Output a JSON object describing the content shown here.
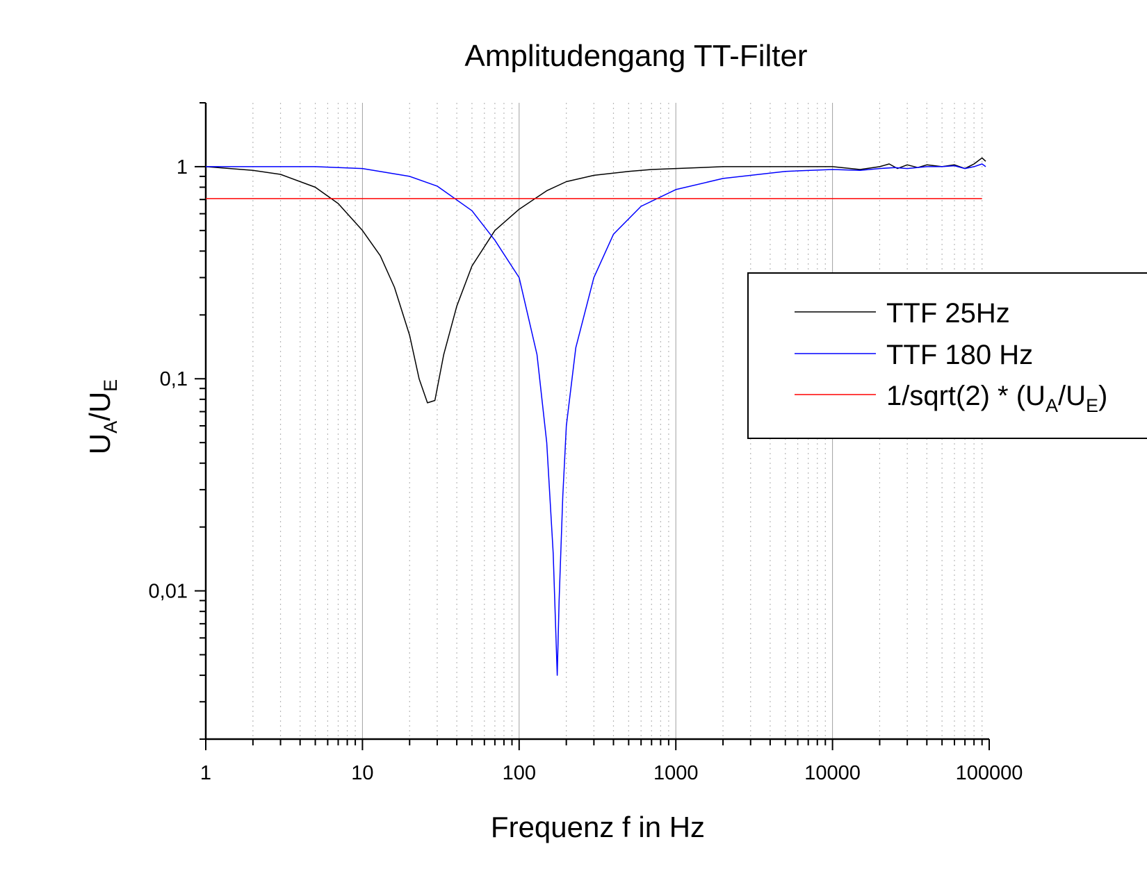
{
  "chart_data": {
    "type": "line",
    "title": "Amplitudengang TT-Filter",
    "xlabel": "Frequenz f in Hz",
    "ylabel": {
      "main": "U",
      "sub_a": "A",
      "slash": "/U",
      "sub_e": "E"
    },
    "x_scale": "log",
    "y_scale": "log",
    "xlim": [
      1,
      100000
    ],
    "ylim": [
      0.002,
      2
    ],
    "x_ticks": [
      {
        "value": 1,
        "label": "1"
      },
      {
        "value": 10,
        "label": "10"
      },
      {
        "value": 100,
        "label": "100"
      },
      {
        "value": 1000,
        "label": "1000"
      },
      {
        "value": 10000,
        "label": "10000"
      },
      {
        "value": 100000,
        "label": "100000"
      }
    ],
    "y_ticks": [
      {
        "value": 1,
        "label": "1"
      },
      {
        "value": 0.1,
        "label": "0,1"
      },
      {
        "value": 0.01,
        "label": "0,01"
      }
    ],
    "grid": "major solid vertical, minor dotted vertical",
    "legend_position": "right",
    "series": [
      {
        "name": "TTF 25Hz",
        "color": "#000000",
        "x": [
          1,
          2,
          3,
          5,
          7,
          10,
          13,
          16,
          20,
          23,
          26,
          29,
          33,
          40,
          50,
          70,
          100,
          150,
          200,
          300,
          500,
          700,
          1000,
          2000,
          5000,
          10000,
          15000,
          20000,
          23000,
          26000,
          30000,
          35000,
          40000,
          50000,
          60000,
          70000,
          80000,
          90000,
          95000
        ],
        "y": [
          1.0,
          0.96,
          0.92,
          0.8,
          0.67,
          0.5,
          0.38,
          0.27,
          0.16,
          0.1,
          0.077,
          0.079,
          0.13,
          0.22,
          0.34,
          0.5,
          0.63,
          0.77,
          0.85,
          0.91,
          0.95,
          0.97,
          0.98,
          1.0,
          1.0,
          1.0,
          0.97,
          1.0,
          1.03,
          0.98,
          1.02,
          0.99,
          1.02,
          1.0,
          1.02,
          0.98,
          1.03,
          1.1,
          1.06
        ]
      },
      {
        "name": "TTF 180 Hz",
        "color": "#0000ff",
        "x": [
          1,
          5,
          10,
          20,
          30,
          50,
          70,
          100,
          130,
          150,
          165,
          175,
          180,
          190,
          200,
          230,
          300,
          400,
          600,
          1000,
          2000,
          5000,
          10000,
          15000,
          20000,
          25000,
          30000,
          40000,
          50000,
          60000,
          70000,
          80000,
          90000,
          95000
        ],
        "y": [
          1.0,
          1.0,
          0.98,
          0.9,
          0.81,
          0.62,
          0.45,
          0.3,
          0.13,
          0.05,
          0.015,
          0.004,
          0.009,
          0.028,
          0.06,
          0.14,
          0.3,
          0.48,
          0.65,
          0.78,
          0.88,
          0.95,
          0.97,
          0.96,
          0.98,
          0.99,
          0.98,
          1.0,
          1.0,
          1.01,
          0.98,
          1.0,
          1.03,
          1.0
        ]
      },
      {
        "name": "1/sqrt(2) * (U_A/U_E)",
        "color": "#ff0000",
        "x": [
          1,
          90000
        ],
        "y": [
          0.707,
          0.707
        ]
      }
    ],
    "legend": [
      {
        "text": "TTF 25Hz",
        "color": "#000000"
      },
      {
        "text": "TTF 180 Hz",
        "color": "#0000ff"
      },
      {
        "text_a": "1/sqrt(2) * (U",
        "sub_a": "A",
        "text_b": "/U",
        "sub_e": "E",
        "text_c": ")",
        "color": "#ff0000"
      }
    ]
  }
}
